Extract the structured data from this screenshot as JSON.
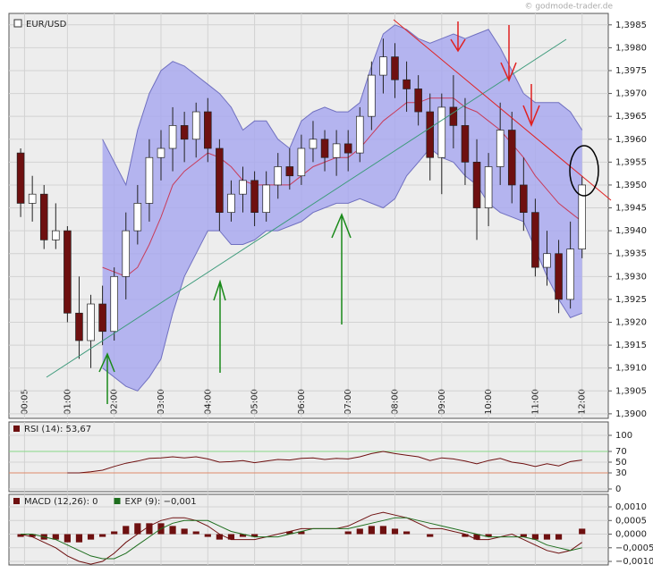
{
  "watermark": "© godmode-trader.de",
  "chart_data": [
    {
      "type": "candlestick",
      "name": "EUR/USD",
      "x": [
        0,
        0.25,
        0.5,
        0.75,
        1,
        1.25,
        1.5,
        1.75,
        2,
        2.25,
        2.5,
        2.75,
        3,
        3.25,
        3.5,
        3.75,
        4,
        4.25,
        4.5,
        4.75,
        5,
        5.25,
        5.5,
        5.75,
        6,
        6.25,
        6.5,
        6.75,
        7,
        7.25,
        7.5,
        7.75,
        8,
        8.25,
        8.5,
        8.75,
        9,
        9.25,
        9.5,
        9.75,
        10,
        10.25,
        10.5,
        10.75,
        11,
        11.25,
        11.5,
        11.75,
        12
      ],
      "open": [
        1.3957,
        1.3946,
        1.3948,
        1.3938,
        1.394,
        1.3922,
        1.3916,
        1.3924,
        1.3918,
        1.393,
        1.394,
        1.3946,
        1.3956,
        1.3958,
        1.3963,
        1.396,
        1.3966,
        1.3958,
        1.3944,
        1.3948,
        1.3951,
        1.3944,
        1.395,
        1.3954,
        1.3952,
        1.3958,
        1.396,
        1.3956,
        1.3959,
        1.3957,
        1.3965,
        1.3974,
        1.3978,
        1.3973,
        1.3971,
        1.3966,
        1.3956,
        1.3967,
        1.3963,
        1.3955,
        1.3945,
        1.3954,
        1.3962,
        1.395,
        1.3944,
        1.3932,
        1.3935,
        1.3925,
        1.3936
      ],
      "high": [
        1.3958,
        1.3952,
        1.395,
        1.3946,
        1.3941,
        1.393,
        1.3926,
        1.3928,
        1.3932,
        1.3944,
        1.395,
        1.396,
        1.3962,
        1.3967,
        1.3966,
        1.3968,
        1.3969,
        1.396,
        1.3951,
        1.3954,
        1.3953,
        1.3953,
        1.3957,
        1.3958,
        1.3961,
        1.3964,
        1.3962,
        1.3962,
        1.3962,
        1.3967,
        1.3977,
        1.3982,
        1.3981,
        1.3977,
        1.3974,
        1.397,
        1.397,
        1.3974,
        1.3969,
        1.396,
        1.3957,
        1.3968,
        1.3966,
        1.3956,
        1.3947,
        1.394,
        1.3938,
        1.3942,
        1.3952
      ],
      "low": [
        1.3943,
        1.3942,
        1.3936,
        1.3936,
        1.392,
        1.3912,
        1.391,
        1.3915,
        1.3916,
        1.3925,
        1.3937,
        1.3942,
        1.3951,
        1.3953,
        1.3955,
        1.3956,
        1.3955,
        1.394,
        1.3942,
        1.3944,
        1.3941,
        1.3942,
        1.3947,
        1.3949,
        1.395,
        1.3955,
        1.3953,
        1.3952,
        1.3953,
        1.3955,
        1.3962,
        1.397,
        1.3969,
        1.3966,
        1.3963,
        1.3951,
        1.3948,
        1.3958,
        1.395,
        1.3938,
        1.3941,
        1.395,
        1.3946,
        1.394,
        1.393,
        1.3928,
        1.3922,
        1.3923,
        1.3934
      ],
      "close": [
        1.3946,
        1.3948,
        1.3938,
        1.394,
        1.3922,
        1.3916,
        1.3924,
        1.3918,
        1.393,
        1.394,
        1.3946,
        1.3956,
        1.3958,
        1.3963,
        1.396,
        1.3966,
        1.3958,
        1.3944,
        1.3948,
        1.3951,
        1.3944,
        1.395,
        1.3954,
        1.3952,
        1.3958,
        1.396,
        1.3956,
        1.3959,
        1.3957,
        1.3965,
        1.3974,
        1.3978,
        1.3973,
        1.3971,
        1.3966,
        1.3956,
        1.3967,
        1.3963,
        1.3955,
        1.3945,
        1.3954,
        1.3962,
        1.395,
        1.3944,
        1.3932,
        1.3935,
        1.3925,
        1.3936,
        1.395
      ],
      "up_color": "#ffffff",
      "down_color": "#6e1010",
      "bollinger": {
        "fill": "#a9a9ee",
        "edge": "#7070c0",
        "middle_color": "#c83c5a",
        "upper": [
          null,
          null,
          null,
          null,
          null,
          null,
          null,
          1.396,
          1.3955,
          1.395,
          1.3962,
          1.397,
          1.3975,
          1.3977,
          1.3976,
          1.3974,
          1.3972,
          1.397,
          1.3967,
          1.3962,
          1.3964,
          1.3964,
          1.396,
          1.3958,
          1.3964,
          1.3966,
          1.3967,
          1.3966,
          1.3966,
          1.3968,
          1.3976,
          1.3983,
          1.3985,
          1.3984,
          1.3982,
          1.3981,
          1.3982,
          1.3983,
          1.3982,
          1.3983,
          1.3984,
          1.398,
          1.3975,
          1.397,
          1.3968,
          1.3968,
          1.3968,
          1.3966,
          1.3962
        ],
        "middle": [
          null,
          null,
          null,
          null,
          null,
          null,
          null,
          1.3932,
          1.3931,
          1.393,
          1.3932,
          1.3937,
          1.3943,
          1.395,
          1.3953,
          1.3955,
          1.3957,
          1.3956,
          1.3954,
          1.3951,
          1.395,
          1.395,
          1.395,
          1.395,
          1.3952,
          1.3954,
          1.3955,
          1.3956,
          1.3956,
          1.3958,
          1.3961,
          1.3964,
          1.3966,
          1.3968,
          1.3968,
          1.3969,
          1.3969,
          1.3969,
          1.3967,
          1.3966,
          1.3964,
          1.3962,
          1.3959,
          1.3956,
          1.3952,
          1.3949,
          1.3946,
          1.3944,
          1.3942
        ],
        "lower": [
          null,
          null,
          null,
          null,
          null,
          null,
          null,
          1.391,
          1.3908,
          1.3906,
          1.3905,
          1.3908,
          1.3912,
          1.3922,
          1.393,
          1.3935,
          1.394,
          1.394,
          1.3937,
          1.3937,
          1.3938,
          1.394,
          1.394,
          1.3941,
          1.3942,
          1.3944,
          1.3945,
          1.3946,
          1.3946,
          1.3947,
          1.3946,
          1.3945,
          1.3947,
          1.3952,
          1.3955,
          1.3958,
          1.3956,
          1.3955,
          1.3952,
          1.395,
          1.3946,
          1.3944,
          1.3943,
          1.3942,
          1.3936,
          1.393,
          1.3925,
          1.3921,
          1.3922
        ]
      },
      "xlim": [
        -0.25,
        12.56
      ],
      "ylim": [
        1.3899,
        1.39875
      ],
      "xticks": [
        {
          "value": 0.083,
          "label": "00:05"
        },
        {
          "value": 1,
          "label": "01:00"
        },
        {
          "value": 2,
          "label": "02:00"
        },
        {
          "value": 3,
          "label": "03:00"
        },
        {
          "value": 4,
          "label": "04:00"
        },
        {
          "value": 5,
          "label": "05:00"
        },
        {
          "value": 6,
          "label": "06:00"
        },
        {
          "value": 7,
          "label": "07:00"
        },
        {
          "value": 8,
          "label": "08:00"
        },
        {
          "value": 9,
          "label": "09:00"
        },
        {
          "value": 10,
          "label": "10:00"
        },
        {
          "value": 11,
          "label": "11:00"
        },
        {
          "value": 12,
          "label": "12:00"
        }
      ],
      "yticks": [
        {
          "value": 1.39,
          "label": "1,3900"
        },
        {
          "value": 1.3905,
          "label": "1,3905"
        },
        {
          "value": 1.391,
          "label": "1,3910"
        },
        {
          "value": 1.3915,
          "label": "1,3915"
        },
        {
          "value": 1.392,
          "label": "1,3920"
        },
        {
          "value": 1.3925,
          "label": "1,3925"
        },
        {
          "value": 1.393,
          "label": "1,3930"
        },
        {
          "value": 1.3935,
          "label": "1,3935"
        },
        {
          "value": 1.394,
          "label": "1,3940"
        },
        {
          "value": 1.3945,
          "label": "1,3945"
        },
        {
          "value": 1.395,
          "label": "1,3950"
        },
        {
          "value": 1.3955,
          "label": "1,3955"
        },
        {
          "value": 1.396,
          "label": "1,3960"
        },
        {
          "value": 1.3965,
          "label": "1,3965"
        },
        {
          "value": 1.397,
          "label": "1,3970"
        },
        {
          "value": 1.3975,
          "label": "1,3975"
        },
        {
          "value": 1.398,
          "label": "1,3980"
        },
        {
          "value": 1.3985,
          "label": "1,3985"
        }
      ],
      "grid": true
    },
    {
      "type": "line",
      "series": [
        {
          "name": "RSI (14): 53,67",
          "color": "#6e1010",
          "values": [
            null,
            null,
            null,
            null,
            30,
            30,
            32,
            35,
            42,
            48,
            52,
            57,
            58,
            60,
            58,
            60,
            56,
            50,
            51,
            53,
            49,
            52,
            55,
            54,
            57,
            58,
            55,
            57,
            56,
            60,
            66,
            70,
            66,
            63,
            60,
            53,
            58,
            56,
            52,
            47,
            53,
            57,
            50,
            47,
            42,
            47,
            43,
            51,
            54
          ]
        }
      ],
      "reference_lines": [
        {
          "value": 70,
          "color": "#88d888"
        },
        {
          "value": 30,
          "color": "#e08a6a"
        }
      ],
      "ylim": [
        -5,
        125
      ],
      "yticks": [
        0,
        30,
        50,
        70,
        100
      ],
      "grid": true
    },
    {
      "type": "macd",
      "histogram": {
        "color": "#6e1010",
        "values": [
          -0.0001,
          -0.0001,
          -0.0002,
          -0.0002,
          -0.0003,
          -0.0003,
          -0.0002,
          -0.0001,
          0.0001,
          0.0003,
          0.0004,
          0.0004,
          0.0004,
          0.0003,
          0.0002,
          0.0001,
          -0.0001,
          -0.0002,
          -0.0002,
          -0.0001,
          -0.0001,
          0,
          0,
          0.0001,
          0.0001,
          0,
          0,
          0,
          0.0001,
          0.0002,
          0.0003,
          0.0003,
          0.0002,
          0.0001,
          0,
          -0.0001,
          0,
          0,
          -0.0001,
          -0.0002,
          -0.0001,
          0,
          0,
          -0.0001,
          -0.0002,
          -0.0002,
          -0.0002,
          0,
          0.0002
        ]
      },
      "series": [
        {
          "name": "MACD (12,26): 0",
          "color": "#6e1010",
          "values": [
            0,
            -0.0001,
            -0.0003,
            -0.0005,
            -0.0008,
            -0.001,
            -0.0011,
            -0.001,
            -0.0007,
            -0.0003,
            0,
            0.0003,
            0.0005,
            0.0006,
            0.0006,
            0.0005,
            0.0003,
            0,
            -0.0002,
            -0.0002,
            -0.0002,
            -0.0001,
            0,
            0.0001,
            0.0002,
            0.0002,
            0.0002,
            0.0002,
            0.0003,
            0.0005,
            0.0007,
            0.0008,
            0.0007,
            0.0006,
            0.0004,
            0.0002,
            0.0002,
            0.0001,
            0,
            -0.0002,
            -0.0002,
            -0.0001,
            0,
            -0.0002,
            -0.0004,
            -0.0006,
            -0.0007,
            -0.0006,
            -0.0003
          ]
        },
        {
          "name": "EXP (9): −0,001",
          "color": "#1e6e1e",
          "values": [
            0,
            0,
            -0.0001,
            -0.0002,
            -0.0004,
            -0.0006,
            -0.0008,
            -0.0009,
            -0.0009,
            -0.0007,
            -0.0004,
            -0.0001,
            0.0002,
            0.0004,
            0.0005,
            0.0005,
            0.0005,
            0.0003,
            0.0001,
            0,
            -0.0001,
            -0.0001,
            -0.0001,
            0,
            0.0001,
            0.0002,
            0.0002,
            0.0002,
            0.0002,
            0.0003,
            0.0004,
            0.0005,
            0.0006,
            0.0006,
            0.0005,
            0.0004,
            0.0003,
            0.0002,
            0.0001,
            0,
            -0.0001,
            -0.0001,
            -0.0001,
            -0.0001,
            -0.0002,
            -0.0004,
            -0.0005,
            -0.0006,
            -0.0005
          ]
        }
      ],
      "ylim": [
        -0.00113,
        0.00146
      ],
      "yticks": [
        {
          "value": -0.001,
          "label": "−0,0010"
        },
        {
          "value": -0.0005,
          "label": "−0,0005"
        },
        {
          "value": 0,
          "label": "0,0000"
        },
        {
          "value": 0.0005,
          "label": "0,0005"
        },
        {
          "value": 0.001,
          "label": "0,0010"
        }
      ],
      "grid": true
    }
  ]
}
